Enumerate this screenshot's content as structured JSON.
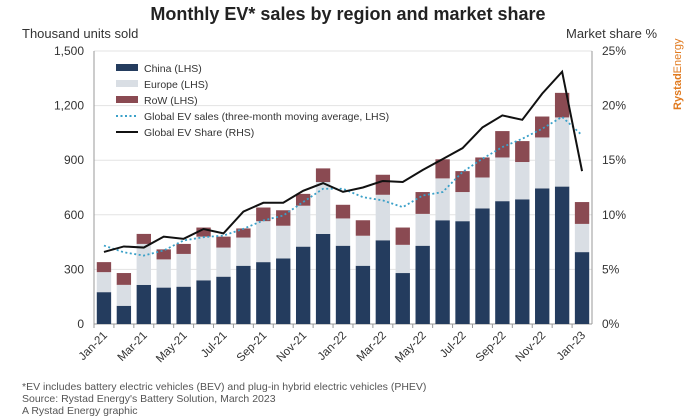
{
  "chart_data": {
    "type": "bar",
    "title": "Monthly EV* sales by region and market share",
    "ylabel": "Thousand units sold",
    "y2label": "Market share %",
    "ylim": [
      0,
      1500
    ],
    "y2lim": [
      0,
      25
    ],
    "yticks": [
      "0",
      "300",
      "600",
      "900",
      "1,200",
      "1,500"
    ],
    "y2ticks": [
      "0%",
      "5%",
      "10%",
      "15%",
      "20%",
      "25%"
    ],
    "categories": [
      "Jan-21",
      "Feb-21",
      "Mar-21",
      "Apr-21",
      "May-21",
      "Jun-21",
      "Jul-21",
      "Aug-21",
      "Sep-21",
      "Oct-21",
      "Nov-21",
      "Dec-21",
      "Jan-22",
      "Feb-22",
      "Mar-22",
      "Apr-22",
      "May-22",
      "Jun-22",
      "Jul-22",
      "Aug-22",
      "Sep-22",
      "Oct-22",
      "Nov-22",
      "Dec-22",
      "Jan-23"
    ],
    "xtick_labels": [
      "Jan-21",
      "",
      "Mar-21",
      "",
      "May-21",
      "",
      "Jul-21",
      "",
      "Sep-21",
      "",
      "Nov-21",
      "",
      "Jan-22",
      "",
      "Mar-22",
      "",
      "May-22",
      "",
      "Jul-22",
      "",
      "Sep-22",
      "",
      "Nov-22",
      "",
      "Jan-23"
    ],
    "series": [
      {
        "name": "China (LHS)",
        "kind": "bar",
        "color": "#243c5e",
        "values": [
          175,
          100,
          215,
          200,
          205,
          240,
          260,
          320,
          340,
          360,
          425,
          495,
          430,
          320,
          460,
          280,
          430,
          570,
          565,
          635,
          675,
          685,
          745,
          755,
          395
        ]
      },
      {
        "name": "Europe (LHS)",
        "kind": "bar",
        "color": "#d9dee4",
        "values": [
          110,
          115,
          225,
          155,
          180,
          240,
          160,
          155,
          225,
          180,
          225,
          285,
          150,
          165,
          250,
          155,
          175,
          230,
          160,
          170,
          240,
          205,
          280,
          380,
          155
        ]
      },
      {
        "name": "RoW (LHS)",
        "kind": "bar",
        "color": "#8a4a52",
        "values": [
          55,
          65,
          55,
          55,
          55,
          50,
          60,
          50,
          75,
          85,
          65,
          75,
          75,
          85,
          110,
          95,
          120,
          105,
          115,
          110,
          145,
          115,
          115,
          135,
          120
        ]
      },
      {
        "name": "Global EV sales (three-month moving average, LHS)",
        "kind": "dotted",
        "color": "#3aa0c8",
        "values": [
          431,
          394,
          376,
          404,
          459,
          477,
          486,
          523,
          569,
          596,
          670,
          743,
          743,
          697,
          679,
          642,
          706,
          725,
          835,
          908,
          972,
          1018,
          1073,
          1138,
          1037
        ]
      },
      {
        "name": "Global EV Share (RHS)",
        "kind": "line",
        "axis": "right",
        "color": "#111111",
        "values": [
          6.6,
          7.1,
          7.0,
          8.0,
          7.8,
          8.7,
          8.3,
          10.3,
          11.1,
          11.1,
          12.2,
          12.9,
          12.1,
          12.5,
          13.1,
          13.0,
          14.1,
          15.1,
          16.1,
          18.0,
          19.1,
          18.7,
          21.1,
          23.1,
          14.0
        ]
      }
    ],
    "grid": true,
    "legend": "top-left"
  },
  "footnotes": [
    "*EV includes battery electric vehicles (BEV) and plug-in hybrid electric vehicles (PHEV)",
    "Source: Rystad Energy's Battery Solution, March 2023",
    "A Rystad Energy graphic"
  ],
  "logo": "RystadEnergy"
}
